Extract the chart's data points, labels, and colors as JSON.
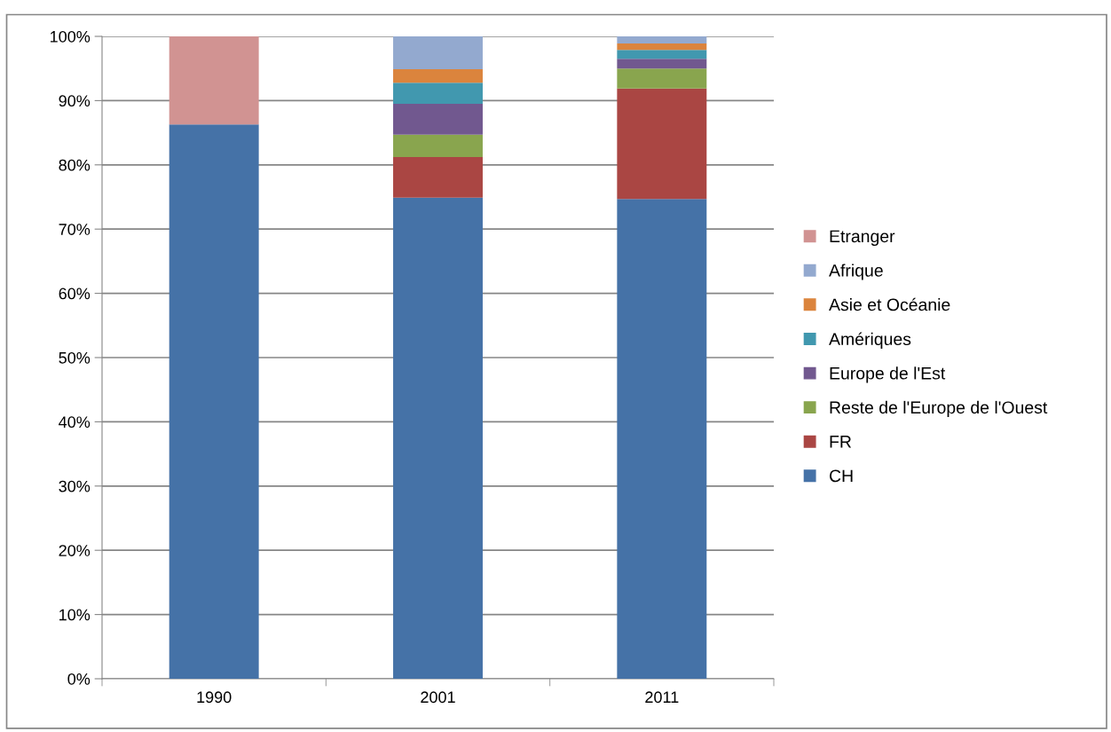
{
  "chart_data": {
    "type": "bar",
    "stacked": true,
    "categories": [
      "1990",
      "2001",
      "2011"
    ],
    "series": [
      {
        "name": "CH",
        "color": "#4572a7",
        "values": [
          86.3,
          74.9,
          74.7
        ]
      },
      {
        "name": "FR",
        "color": "#aa4643",
        "values": [
          null,
          6.3,
          17.2
        ]
      },
      {
        "name": "Reste de l'Europe de l'Ouest",
        "color": "#89a54e",
        "values": [
          null,
          3.5,
          3.1
        ]
      },
      {
        "name": "Europe de l'Est",
        "color": "#71588f",
        "values": [
          null,
          4.8,
          1.5
        ]
      },
      {
        "name": "Amériques",
        "color": "#4198af",
        "values": [
          null,
          3.3,
          1.4
        ]
      },
      {
        "name": "Asie et Océanie",
        "color": "#db843d",
        "values": [
          null,
          2.1,
          1.0
        ]
      },
      {
        "name": "Afrique",
        "color": "#93a9cf",
        "values": [
          null,
          5.1,
          1.1
        ]
      },
      {
        "name": "Etranger",
        "color": "#d19392",
        "values": [
          13.7,
          null,
          null
        ]
      }
    ],
    "ylim": [
      0,
      100
    ],
    "yticks": [
      {
        "value": 0,
        "label": "0%"
      },
      {
        "value": 10,
        "label": "10%"
      },
      {
        "value": 20,
        "label": "20%"
      },
      {
        "value": 30,
        "label": "30%"
      },
      {
        "value": 40,
        "label": "40%"
      },
      {
        "value": 50,
        "label": "50%"
      },
      {
        "value": 60,
        "label": "60%"
      },
      {
        "value": 70,
        "label": "70%"
      },
      {
        "value": 80,
        "label": "80%"
      },
      {
        "value": 90,
        "label": "90%"
      },
      {
        "value": 100,
        "label": "100%"
      }
    ],
    "grid": "y",
    "legend": "right"
  }
}
